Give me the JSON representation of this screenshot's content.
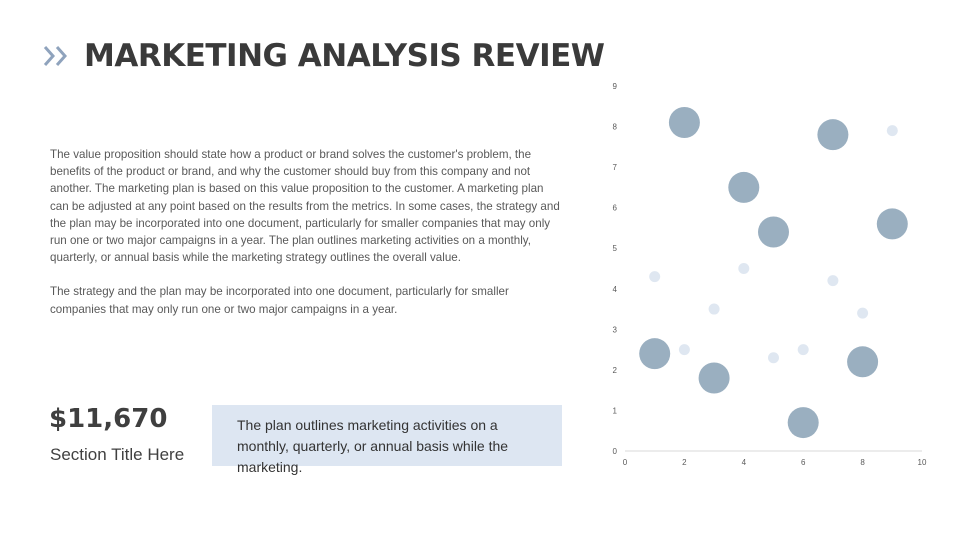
{
  "header": {
    "title": "MARKETING ANALYSIS REVIEW",
    "chevron_icon": "double-chevron-right-icon",
    "chevron_color": "#8fa3bd"
  },
  "body": {
    "paragraph_1": "The value proposition should state how a product or brand solves the customer's problem, the benefits of the product or brand, and why the customer should buy from this company and not another. The marketing plan is based on this value proposition to the customer. A marketing plan can be adjusted at any point based on the results from the metrics. In some cases, the strategy and the plan may be incorporated into one document, particularly for smaller companies that may only run one or two major campaigns in a year. The plan outlines marketing activities on a monthly, quarterly, or annual basis while the marketing strategy outlines the overall value.",
    "paragraph_2": "The strategy and the plan may be incorporated into one document, particularly for smaller companies that may only run one or two major campaigns in a year."
  },
  "stat": {
    "value": "$11,670",
    "label": "Section Title Here"
  },
  "callout": {
    "text": "The plan outlines marketing activities on a monthly, quarterly, or annual basis while the marketing."
  },
  "chart_data": {
    "type": "scatter",
    "bubble": true,
    "title": "",
    "xlabel": "",
    "ylabel": "",
    "xlim": [
      0,
      10
    ],
    "ylim": [
      0,
      9
    ],
    "x_ticks": [
      0,
      2,
      4,
      6,
      8,
      10
    ],
    "y_ticks": [
      0,
      1,
      2,
      3,
      4,
      5,
      6,
      7,
      8,
      9
    ],
    "grid": false,
    "colors": {
      "large": "#9aafc0",
      "small": "#dfe7f1",
      "axis": "#d9d9d9"
    },
    "points": [
      {
        "x": 2,
        "y": 8.1,
        "size": "large"
      },
      {
        "x": 7,
        "y": 7.8,
        "size": "large"
      },
      {
        "x": 9,
        "y": 7.9,
        "size": "small"
      },
      {
        "x": 4,
        "y": 6.5,
        "size": "large"
      },
      {
        "x": 5,
        "y": 5.4,
        "size": "large"
      },
      {
        "x": 9,
        "y": 5.6,
        "size": "large"
      },
      {
        "x": 1,
        "y": 4.3,
        "size": "small"
      },
      {
        "x": 4,
        "y": 4.5,
        "size": "small"
      },
      {
        "x": 7,
        "y": 4.2,
        "size": "small"
      },
      {
        "x": 3,
        "y": 3.5,
        "size": "small"
      },
      {
        "x": 8,
        "y": 3.4,
        "size": "small"
      },
      {
        "x": 1,
        "y": 2.4,
        "size": "large"
      },
      {
        "x": 2,
        "y": 2.5,
        "size": "small"
      },
      {
        "x": 5,
        "y": 2.3,
        "size": "small"
      },
      {
        "x": 6,
        "y": 2.5,
        "size": "small"
      },
      {
        "x": 8,
        "y": 2.2,
        "size": "large"
      },
      {
        "x": 3,
        "y": 1.8,
        "size": "large"
      },
      {
        "x": 6,
        "y": 0.7,
        "size": "large"
      }
    ]
  }
}
